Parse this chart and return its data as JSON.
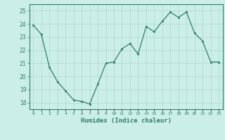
{
  "x": [
    0,
    1,
    2,
    3,
    4,
    5,
    6,
    7,
    8,
    9,
    10,
    11,
    12,
    13,
    14,
    15,
    16,
    17,
    18,
    19,
    20,
    21,
    22,
    23
  ],
  "y": [
    23.9,
    23.2,
    20.7,
    19.6,
    18.9,
    18.2,
    18.1,
    17.9,
    19.4,
    21.0,
    21.1,
    22.1,
    22.5,
    21.7,
    23.8,
    23.4,
    24.2,
    24.9,
    24.5,
    24.9,
    23.3,
    22.7,
    21.1,
    21.1
  ],
  "xlabel": "Humidex (Indice chaleur)",
  "xlim": [
    -0.5,
    23.5
  ],
  "ylim": [
    17.5,
    25.5
  ],
  "yticks": [
    18,
    19,
    20,
    21,
    22,
    23,
    24,
    25
  ],
  "xtick_labels": [
    "0",
    "1",
    "2",
    "3",
    "4",
    "5",
    "6",
    "7",
    "8",
    "9",
    "10",
    "11",
    "12",
    "13",
    "14",
    "15",
    "16",
    "17",
    "18",
    "19",
    "20",
    "21",
    "22",
    "23"
  ],
  "line_color": "#2e7d6e",
  "marker_color": "#2e7d6e",
  "bg_color": "#cceee8",
  "grid_color": "#aad8d0",
  "axes_color": "#2e7d6e",
  "tick_label_color": "#2e7d6e",
  "xlabel_color": "#2e7d6e"
}
